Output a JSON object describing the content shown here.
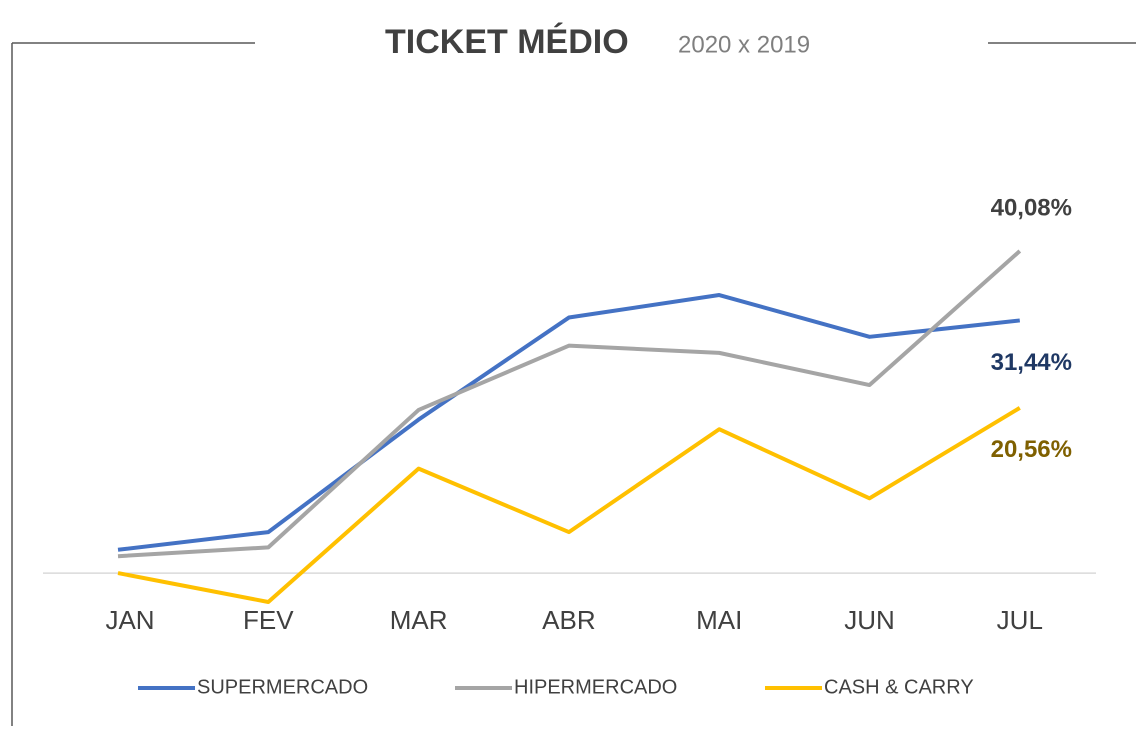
{
  "chart_data": {
    "type": "line",
    "title": "TICKET MÉDIO",
    "subtitle": "2020 x 2019",
    "categories": [
      "JAN",
      "FEV",
      "MAR",
      "ABR",
      "MAI",
      "JUN",
      "JUL"
    ],
    "series": [
      {
        "name": "SUPERMERCADO",
        "color": "#4472c4",
        "values": [
          2.9,
          5.1,
          19.1,
          31.8,
          34.6,
          29.4,
          31.44
        ],
        "value_labels": [
          null,
          null,
          null,
          null,
          null,
          null,
          "31,44%"
        ],
        "label_color": "#1f3864"
      },
      {
        "name": "HIPERMERCADO",
        "color": "#a5a5a5",
        "values": [
          2.1,
          3.2,
          20.3,
          28.3,
          27.4,
          23.4,
          40.08
        ],
        "value_labels": [
          null,
          null,
          null,
          null,
          null,
          null,
          "40,08%"
        ],
        "label_color": "#404040"
      },
      {
        "name": "CASH & CARRY",
        "color": "#ffc000",
        "values": [
          0,
          -3.6,
          13.0,
          5.1,
          17.9,
          9.3,
          20.56
        ],
        "value_labels": [
          null,
          null,
          null,
          null,
          null,
          null,
          "20,56%"
        ],
        "label_color": "#7f6000"
      }
    ]
  }
}
